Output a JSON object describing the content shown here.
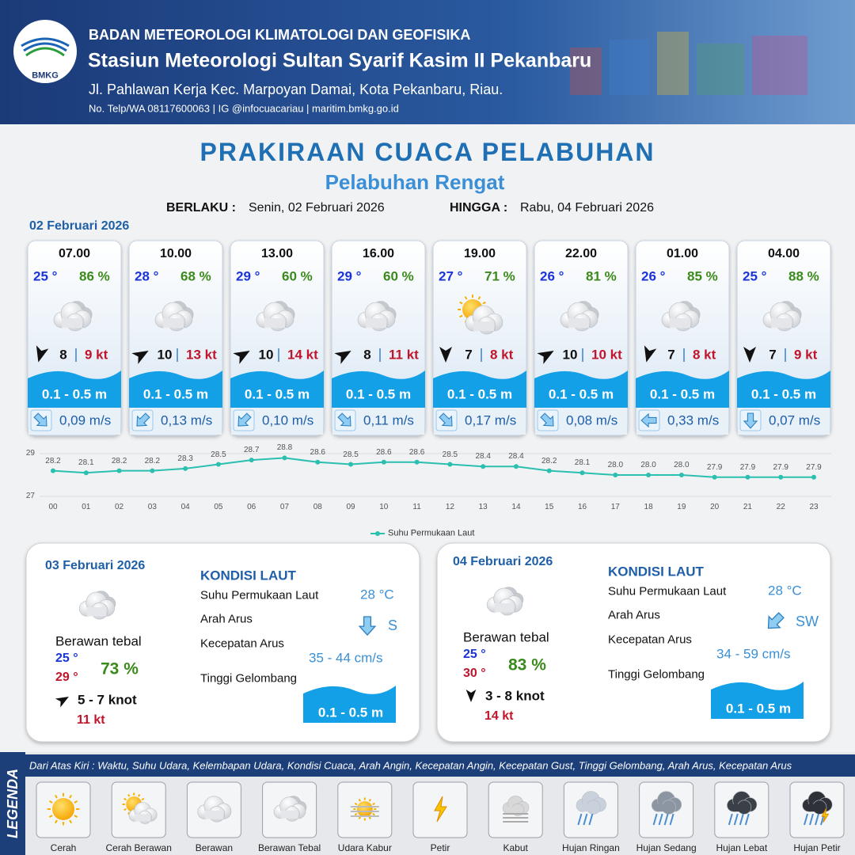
{
  "header": {
    "logo_text": "BMKG",
    "org": "BADAN METEOROLOGI KLIMATOLOGI DAN GEOFISIKA",
    "station": "Stasiun Meteorologi Sultan Syarif Kasim II Pekanbaru",
    "address": "Jl. Pahlawan Kerja Kec. Marpoyan Damai, Kota Pekanbaru, Riau.",
    "contact": "No. Telp/WA 08117600063 | IG @infocuacariau | maritim.bmkg.go.id"
  },
  "title": "PRAKIRAAN CUACA PELABUHAN",
  "subtitle": "Pelabuhan Rengat",
  "validity": {
    "from_label": "BERLAKU :",
    "from": "Senin, 02 Februari 2026",
    "to_label": "HINGGA :",
    "to": "Rabu, 04 Februari 2026"
  },
  "today": {
    "date": "02 Februari 2026",
    "cards": [
      {
        "time": "07.00",
        "temp": "25 °",
        "humidity": "86 %",
        "wind": "8",
        "gust": "9 kt",
        "wave": "0.1 - 0.5 m",
        "current": "0,09 m/s"
      },
      {
        "time": "10.00",
        "temp": "28 °",
        "humidity": "68 %",
        "wind": "10",
        "gust": "13 kt",
        "wave": "0.1 - 0.5 m",
        "current": "0,13 m/s"
      },
      {
        "time": "13.00",
        "temp": "29 °",
        "humidity": "60 %",
        "wind": "10",
        "gust": "14 kt",
        "wave": "0.1 - 0.5 m",
        "current": "0,10 m/s"
      },
      {
        "time": "16.00",
        "temp": "29 °",
        "humidity": "60 %",
        "wind": "8",
        "gust": "11 kt",
        "wave": "0.1 - 0.5 m",
        "current": "0,11 m/s"
      },
      {
        "time": "19.00",
        "temp": "27 °",
        "humidity": "71 %",
        "wind": "7",
        "gust": "8 kt",
        "wave": "0.1 - 0.5 m",
        "current": "0,17 m/s"
      },
      {
        "time": "22.00",
        "temp": "26 °",
        "humidity": "81 %",
        "wind": "10",
        "gust": "10 kt",
        "wave": "0.1 - 0.5 m",
        "current": "0,08 m/s"
      },
      {
        "time": "01.00",
        "temp": "26 °",
        "humidity": "85 %",
        "wind": "7",
        "gust": "8 kt",
        "wave": "0.1 - 0.5 m",
        "current": "0,33 m/s"
      },
      {
        "time": "04.00",
        "temp": "25 °",
        "humidity": "88 %",
        "wind": "7",
        "gust": "9 kt",
        "wave": "0.1 - 0.5 m",
        "current": "0,07 m/s"
      }
    ]
  },
  "chart_data": {
    "type": "line",
    "categories": [
      "00",
      "01",
      "02",
      "03",
      "04",
      "05",
      "06",
      "07",
      "08",
      "09",
      "10",
      "11",
      "12",
      "13",
      "14",
      "15",
      "16",
      "17",
      "18",
      "19",
      "20",
      "21",
      "22",
      "23"
    ],
    "series": [
      {
        "name": "Suhu Permukaan Laut",
        "color": "#2bbfb0",
        "values": [
          28.2,
          28.1,
          28.2,
          28.2,
          28.3,
          28.5,
          28.7,
          28.8,
          28.6,
          28.5,
          28.6,
          28.6,
          28.5,
          28.4,
          28.4,
          28.2,
          28.1,
          28.0,
          28.0,
          28.0,
          27.9,
          27.9,
          27.9,
          27.9
        ],
        "value_labels": [
          "28.2",
          "28.1",
          "28.2",
          "28.2",
          "28.3",
          "28.5",
          "28.7",
          "28.8",
          "28.6",
          "28.5",
          "28.6",
          "28.6",
          "28.5",
          "28.4",
          "28.4",
          "28.2",
          "28.1",
          "28.0",
          "28.0",
          "28.0",
          "27.9",
          "27.9",
          "27.9",
          "27.9"
        ]
      }
    ],
    "ylim": [
      27,
      29
    ],
    "yticks": [
      27,
      29
    ]
  },
  "days": [
    {
      "date": "03 Februari 2026",
      "sea_title": "KONDISI LAUT",
      "condition": "Berawan tebal",
      "temp_min": "25 °",
      "temp_max": "29 °",
      "humidity": "73 %",
      "wind": "5 - 7 knot",
      "gust": "11 kt",
      "sst_label": "Suhu Permukaan Laut",
      "sst": "28 °C",
      "current_dir_label": "Arah Arus",
      "current_dir": "S",
      "current_speed_label": "Kecepatan Arus",
      "current_speed": "35 - 44 cm/s",
      "wave_label": "Tinggi Gelombang",
      "wave": "0.1 - 0.5 m"
    },
    {
      "date": "04 Februari 2026",
      "sea_title": "KONDISI LAUT",
      "condition": "Berawan tebal",
      "temp_min": "25 °",
      "temp_max": "30 °",
      "humidity": "83 %",
      "wind": "3 - 8 knot",
      "gust": "14 kt",
      "sst_label": "Suhu Permukaan Laut",
      "sst": "28 °C",
      "current_dir_label": "Arah Arus",
      "current_dir": "SW",
      "current_speed_label": "Kecepatan Arus",
      "current_speed": "34 - 59 cm/s",
      "wave_label": "Tinggi Gelombang",
      "wave": "0.1 - 0.5 m"
    }
  ],
  "legend": {
    "title": "LEGENDA",
    "description": "Dari Atas Kiri : Waktu, Suhu Udara, Kelembapan Udara, Kondisi Cuaca, Arah Angin, Kecepatan Angin, Kecepatan Gust, Tinggi Gelombang, Arah Arus, Kecepatan Arus",
    "items": [
      "Cerah",
      "Cerah Berawan",
      "Berawan",
      "Berawan Tebal",
      "Udara Kabur",
      "Petir",
      "Kabut",
      "Hujan Ringan",
      "Hujan Sedang",
      "Hujan Lebat",
      "Hujan Petir"
    ]
  }
}
